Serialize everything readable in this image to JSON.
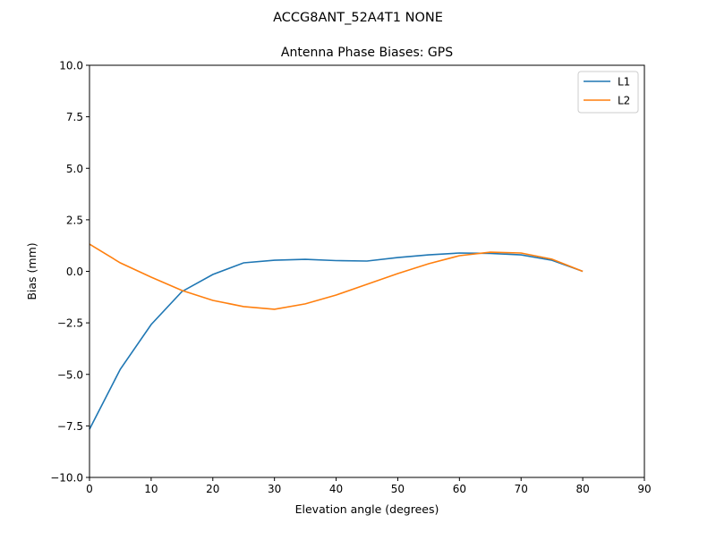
{
  "figure": {
    "suptitle": "ACCG8ANT_52A4T1 NONE",
    "title": "Antenna Phase Biases: GPS",
    "xlabel": "Elevation angle (degrees)",
    "ylabel": "Bias (mm)"
  },
  "chart_data": {
    "type": "line",
    "title": "Antenna Phase Biases: GPS",
    "suptitle": "ACCG8ANT_52A4T1 NONE",
    "xlabel": "Elevation angle (degrees)",
    "ylabel": "Bias (mm)",
    "xlim": [
      0,
      90
    ],
    "ylim": [
      -10,
      10
    ],
    "xticks": [
      0,
      10,
      20,
      30,
      40,
      50,
      60,
      70,
      80,
      90
    ],
    "yticks": [
      -10.0,
      -7.5,
      -5.0,
      -2.5,
      0.0,
      2.5,
      5.0,
      7.5,
      10.0
    ],
    "grid": false,
    "legend_position": "upper right",
    "x": [
      0,
      5,
      10,
      15,
      20,
      25,
      30,
      35,
      40,
      45,
      50,
      55,
      60,
      65,
      70,
      75,
      80
    ],
    "series": [
      {
        "name": "L1",
        "color": "#1f77b4",
        "values": [
          -7.66,
          -4.75,
          -2.58,
          -0.98,
          -0.15,
          0.41,
          0.54,
          0.58,
          0.52,
          0.5,
          0.67,
          0.8,
          0.89,
          0.87,
          0.8,
          0.54,
          0.0
        ]
      },
      {
        "name": "L2",
        "color": "#ff7f0e",
        "values": [
          1.32,
          0.41,
          -0.28,
          -0.93,
          -1.41,
          -1.71,
          -1.84,
          -1.58,
          -1.15,
          -0.63,
          -0.11,
          0.37,
          0.76,
          0.93,
          0.89,
          0.59,
          0.0
        ]
      }
    ]
  }
}
